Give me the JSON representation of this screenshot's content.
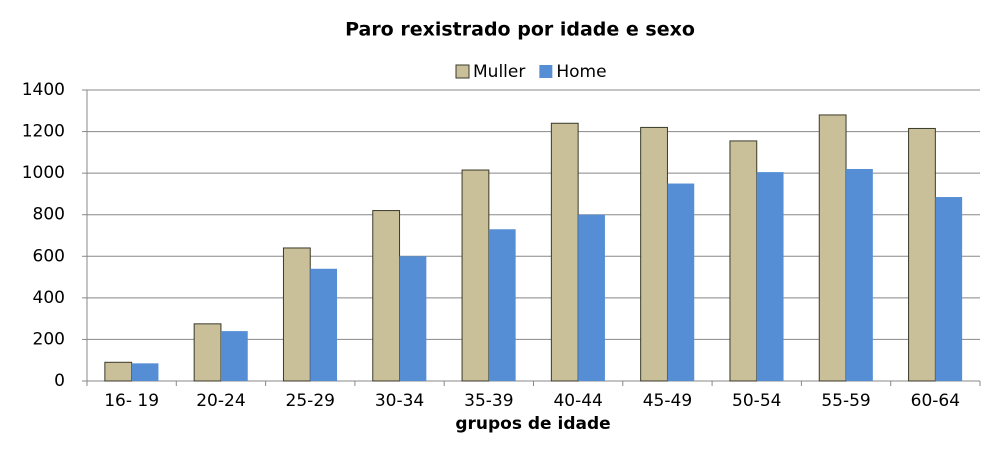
{
  "chart_data": {
    "type": "bar",
    "title": "Paro rexistrado por idade e sexo",
    "x_label": "grupos de idade",
    "categories": [
      "16- 19",
      "20-24",
      "25-29",
      "30-34",
      "35-39",
      "40-44",
      "45-49",
      "50-54",
      "55-59",
      "60-64"
    ],
    "series": [
      {
        "name": "Muller",
        "color": "#c9bf99",
        "values": [
          90,
          275,
          640,
          820,
          1015,
          1240,
          1220,
          1155,
          1280,
          1215
        ]
      },
      {
        "name": "Home",
        "color": "#558ed5",
        "values": [
          85,
          240,
          540,
          600,
          730,
          800,
          950,
          1005,
          1020,
          885
        ]
      }
    ],
    "ylim": [
      0,
      1400
    ],
    "yticks": [
      0,
      200,
      400,
      600,
      800,
      1000,
      1200,
      1400
    ],
    "grid": true,
    "legend": "top"
  }
}
